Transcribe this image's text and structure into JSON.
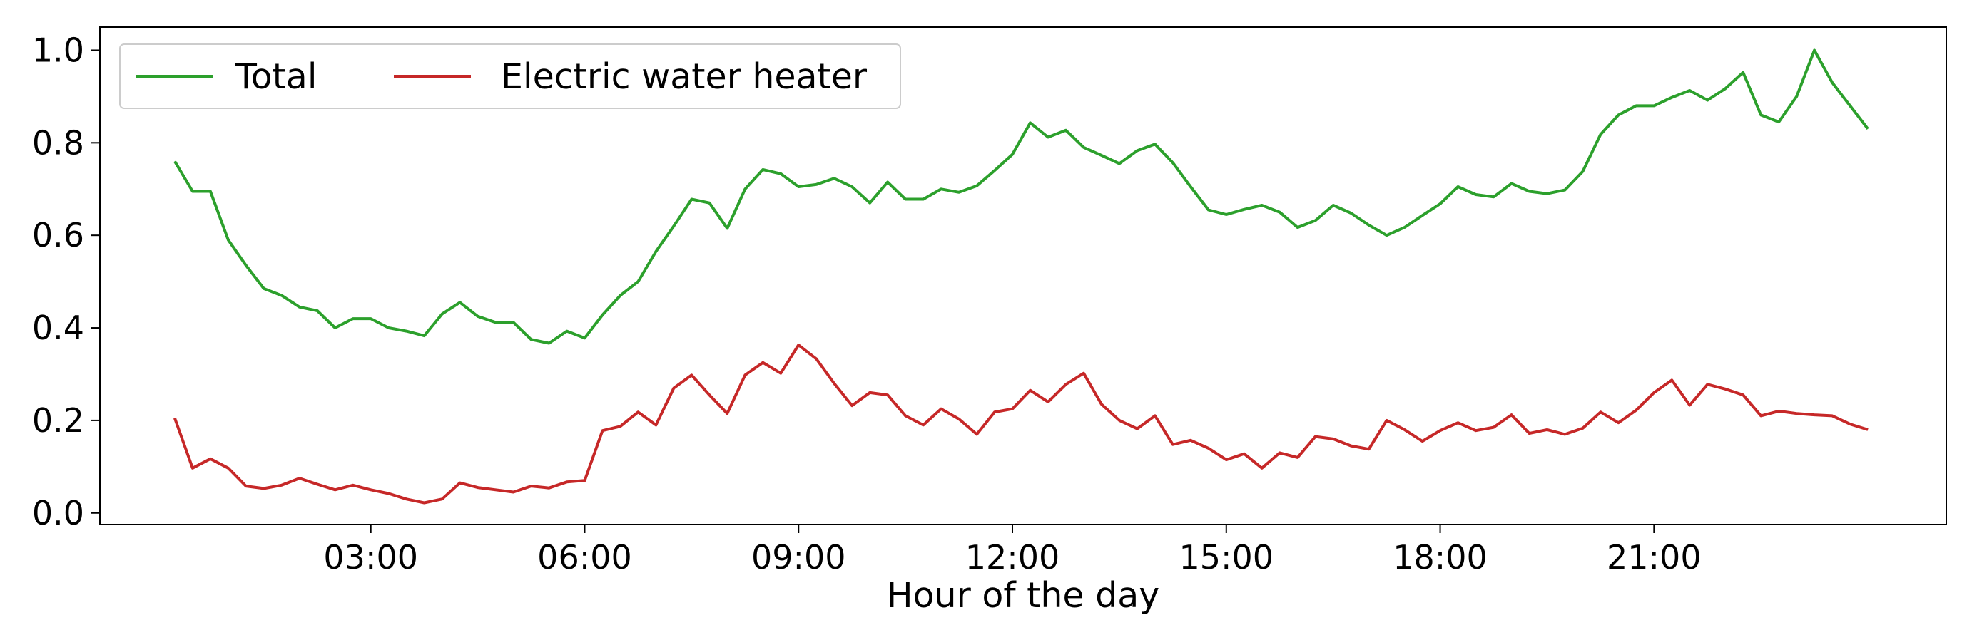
{
  "chart_data": {
    "type": "line",
    "title": "",
    "xlabel": "Hour of the day",
    "ylabel": "",
    "x_unit": "hours",
    "x_step": 0.25,
    "x_start": 0.25,
    "xlim": [
      -0.8,
      25.1
    ],
    "ylim": [
      -0.025,
      1.05
    ],
    "x_ticks": [
      {
        "value": 3,
        "label": "03:00"
      },
      {
        "value": 6,
        "label": "06:00"
      },
      {
        "value": 9,
        "label": "09:00"
      },
      {
        "value": 12,
        "label": "12:00"
      },
      {
        "value": 15,
        "label": "15:00"
      },
      {
        "value": 18,
        "label": "18:00"
      },
      {
        "value": 21,
        "label": "21:00"
      }
    ],
    "y_ticks": [
      {
        "value": 0.0,
        "label": "0.0"
      },
      {
        "value": 0.2,
        "label": "0.2"
      },
      {
        "value": 0.4,
        "label": "0.4"
      },
      {
        "value": 0.6,
        "label": "0.6"
      },
      {
        "value": 0.8,
        "label": "0.8"
      },
      {
        "value": 1.0,
        "label": "1.0"
      }
    ],
    "legend_position": "top-left",
    "grid": false,
    "series": [
      {
        "name": "Total",
        "color": "#2ca02c",
        "values": [
          0.76,
          0.695,
          0.695,
          0.59,
          0.535,
          0.485,
          0.47,
          0.445,
          0.437,
          0.4,
          0.42,
          0.42,
          0.4,
          0.393,
          0.383,
          0.43,
          0.455,
          0.425,
          0.412,
          0.412,
          0.375,
          0.367,
          0.393,
          0.378,
          0.428,
          0.47,
          0.5,
          0.565,
          0.62,
          0.678,
          0.67,
          0.615,
          0.7,
          0.742,
          0.733,
          0.705,
          0.71,
          0.723,
          0.705,
          0.67,
          0.715,
          0.678,
          0.678,
          0.7,
          0.693,
          0.707,
          0.74,
          0.775,
          0.843,
          0.812,
          0.827,
          0.79,
          0.773,
          0.755,
          0.783,
          0.797,
          0.757,
          0.705,
          0.655,
          0.645,
          0.656,
          0.665,
          0.65,
          0.617,
          0.632,
          0.665,
          0.648,
          0.622,
          0.6,
          0.617,
          0.643,
          0.668,
          0.705,
          0.688,
          0.683,
          0.712,
          0.695,
          0.69,
          0.698,
          0.738,
          0.818,
          0.86,
          0.88,
          0.88,
          0.898,
          0.913,
          0.892,
          0.917,
          0.952,
          0.86,
          0.845,
          0.9,
          1.0,
          0.93,
          0.88,
          0.83
        ]
      },
      {
        "name": "Electric water heater",
        "color": "#c62828",
        "values": [
          0.205,
          0.097,
          0.117,
          0.097,
          0.058,
          0.053,
          0.06,
          0.075,
          0.062,
          0.05,
          0.06,
          0.05,
          0.042,
          0.03,
          0.022,
          0.03,
          0.065,
          0.055,
          0.05,
          0.045,
          0.058,
          0.054,
          0.067,
          0.07,
          0.178,
          0.187,
          0.218,
          0.19,
          0.27,
          0.298,
          0.255,
          0.215,
          0.298,
          0.325,
          0.302,
          0.363,
          0.333,
          0.28,
          0.232,
          0.26,
          0.255,
          0.21,
          0.19,
          0.225,
          0.203,
          0.17,
          0.218,
          0.225,
          0.265,
          0.24,
          0.278,
          0.302,
          0.235,
          0.2,
          0.182,
          0.21,
          0.148,
          0.157,
          0.14,
          0.115,
          0.128,
          0.097,
          0.13,
          0.12,
          0.165,
          0.16,
          0.145,
          0.138,
          0.2,
          0.18,
          0.155,
          0.178,
          0.195,
          0.178,
          0.185,
          0.212,
          0.172,
          0.18,
          0.17,
          0.183,
          0.218,
          0.195,
          0.222,
          0.26,
          0.287,
          0.233,
          0.278,
          0.268,
          0.255,
          0.21,
          0.22,
          0.215,
          0.212,
          0.21,
          0.192,
          0.18
        ]
      }
    ]
  }
}
